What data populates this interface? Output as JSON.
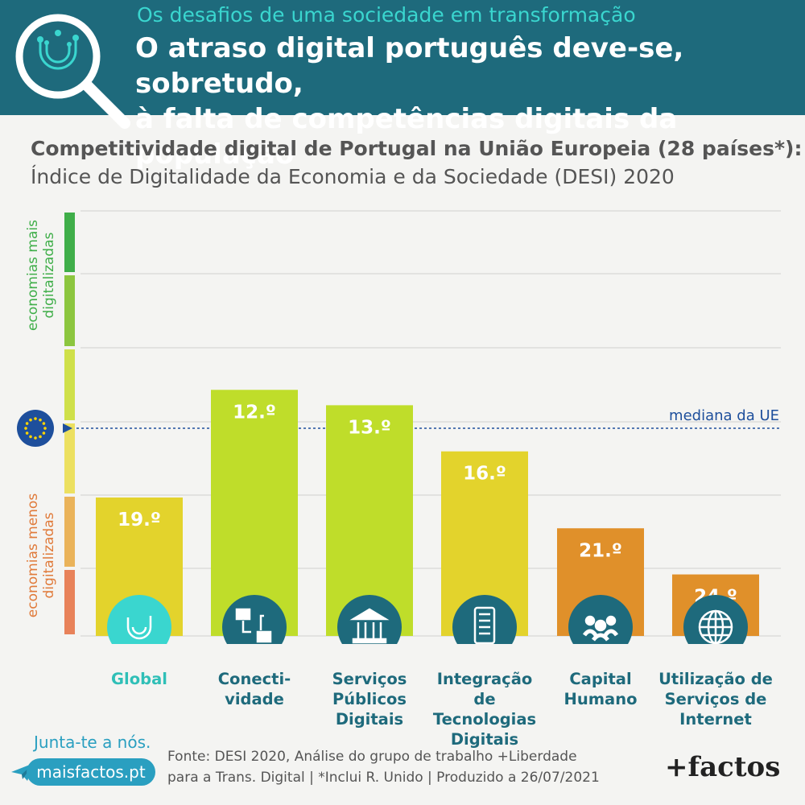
{
  "header": {
    "supertitle": "Os desafios de uma sociedade em transformação",
    "headline_line1": "O atraso digital português deve-se, sobretudo,",
    "headline_line2": "à falta de competências digitais da população",
    "logo_icon": "magnifier-circuit-icon"
  },
  "chart_title": "Competitividade digital de Portugal na União Europeia (28 países*):",
  "chart_subtitle": "Índice de Digitalidade da Economia e da Sociedade (DESI) 2020",
  "chart_data": {
    "type": "bar",
    "title": "Competitividade digital de Portugal na União Europeia (28 países*):",
    "subtitle": "Índice de Digitalidade da Economia e da Sociedade (DESI) 2020",
    "categories": [
      "Global",
      "Conecti-\nvidade",
      "Serviços\nPúblicos\nDigitais",
      "Integração de\nTecnologias\nDigitais",
      "Capital\nHumano",
      "Utilização de\nServiços de\nInternet"
    ],
    "values": [
      19,
      12,
      13,
      16,
      21,
      24
    ],
    "value_labels": [
      "19.º",
      "12.º",
      "13.º",
      "16.º",
      "21.º",
      "24.º"
    ],
    "unit": "rank out of 28",
    "ylim": [
      28,
      0
    ],
    "colors": [
      "#e3d32c",
      "#bfdd2a",
      "#bfdd2a",
      "#e3d32c",
      "#e0902a",
      "#e0902a"
    ],
    "icons": [
      "circuit-icon",
      "network-computers-icon",
      "government-building-icon",
      "smartphone-icon",
      "people-icon",
      "globe-icon"
    ],
    "median_rank": 14.5,
    "median_label": "mediana da UE",
    "median_icon": "eu-flag-icon",
    "scale_top_label": "economias mais\ndigitalizadas",
    "scale_bottom_label": "economias menos\ndigitalizadas",
    "scale_colors": [
      "#3fae49",
      "#8cc63f",
      "#cfe04a",
      "#ece060",
      "#eab35a",
      "#e8825a"
    ],
    "grid": true
  },
  "footer": {
    "join_text": "Junta-te a nós.",
    "site_button": "maisfactos.pt",
    "source_line1": "Fonte: DESI 2020, Análise do grupo de trabalho +Liberdade",
    "source_line2": "para a Trans. Digital | *Inclui R. Unido | Produzido a 26/07/2021",
    "brand": "+factos"
  }
}
